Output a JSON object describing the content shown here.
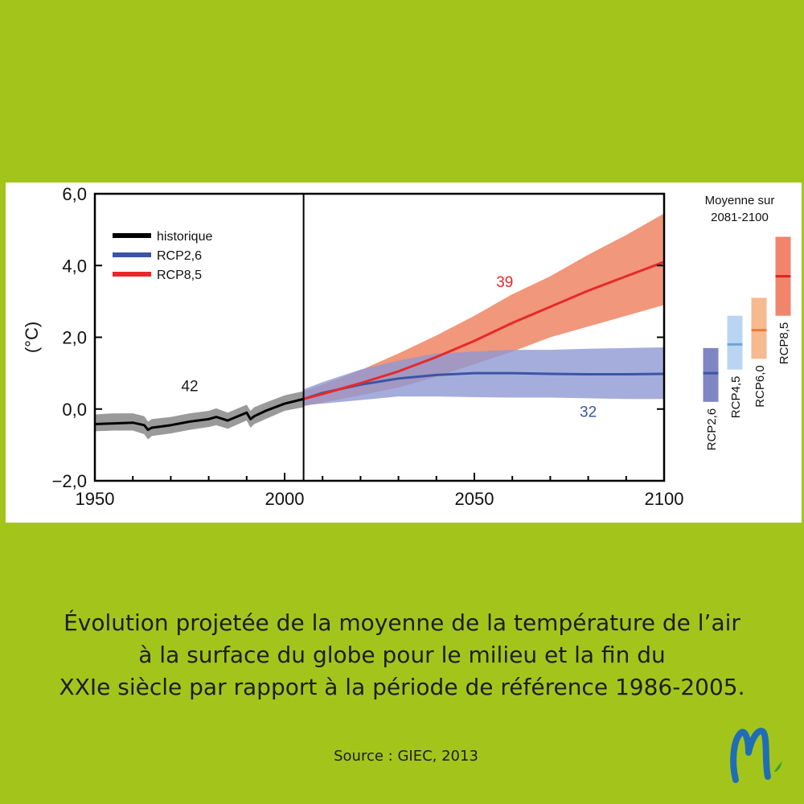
{
  "chart_data": {
    "type": "line",
    "ylabel": "(°C)",
    "xlim": [
      1950,
      2100
    ],
    "ylim": [
      -2,
      6
    ],
    "x_ticks": [
      1950,
      2000,
      2050,
      2100
    ],
    "y_ticks": [
      {
        "value": 6,
        "label": "6,0"
      },
      {
        "value": 4,
        "label": "4,0"
      },
      {
        "value": 2,
        "label": "2,0"
      },
      {
        "value": 0,
        "label": "0,0"
      },
      {
        "value": -2,
        "label": "−2,0"
      }
    ],
    "vline_x": 2005,
    "legend": {
      "placement": "top-left"
    },
    "series": [
      {
        "name": "historique",
        "color": "#000000",
        "band_color": "#9a9a9a",
        "label": "42",
        "label_pos": [
          1975,
          0.5
        ],
        "x": [
          1950,
          1955,
          1960,
          1963,
          1964,
          1965,
          1970,
          1975,
          1980,
          1982,
          1985,
          1990,
          1991,
          1992,
          1995,
          2000,
          2005
        ],
        "y": [
          -0.42,
          -0.4,
          -0.38,
          -0.45,
          -0.58,
          -0.52,
          -0.45,
          -0.35,
          -0.28,
          -0.22,
          -0.32,
          -0.1,
          -0.28,
          -0.2,
          -0.05,
          0.15,
          0.28
        ],
        "lower": [
          -0.62,
          -0.6,
          -0.6,
          -0.7,
          -0.85,
          -0.75,
          -0.68,
          -0.58,
          -0.5,
          -0.45,
          -0.55,
          -0.32,
          -0.52,
          -0.42,
          -0.28,
          -0.05,
          0.05
        ],
        "upper": [
          -0.15,
          -0.12,
          -0.12,
          -0.2,
          -0.35,
          -0.28,
          -0.22,
          -0.12,
          -0.05,
          0.02,
          -0.1,
          0.12,
          -0.05,
          0.05,
          0.18,
          0.38,
          0.5
        ]
      },
      {
        "name": "RCP2,6",
        "color": "#3b55a4",
        "band_color": "#8e98d4",
        "label": "32",
        "label_pos": [
          2080,
          -0.22
        ],
        "x": [
          2005,
          2010,
          2020,
          2030,
          2040,
          2050,
          2060,
          2070,
          2080,
          2090,
          2100
        ],
        "y": [
          0.28,
          0.45,
          0.68,
          0.85,
          0.95,
          1.0,
          1.0,
          0.98,
          0.97,
          0.97,
          0.98
        ],
        "lower": [
          0.1,
          0.15,
          0.25,
          0.35,
          0.35,
          0.33,
          0.32,
          0.32,
          0.3,
          0.28,
          0.28
        ],
        "upper": [
          0.55,
          0.75,
          1.1,
          1.35,
          1.55,
          1.6,
          1.65,
          1.65,
          1.68,
          1.7,
          1.72
        ]
      },
      {
        "name": "RCP8,5",
        "color": "#e8282a",
        "band_color": "#f1977b",
        "label": "39",
        "label_pos": [
          2058,
          3.4
        ],
        "x": [
          2005,
          2010,
          2020,
          2030,
          2040,
          2050,
          2060,
          2070,
          2080,
          2090,
          2100
        ],
        "y": [
          0.28,
          0.42,
          0.72,
          1.05,
          1.45,
          1.9,
          2.4,
          2.85,
          3.3,
          3.7,
          4.1
        ],
        "lower": [
          0.08,
          0.18,
          0.38,
          0.6,
          0.9,
          1.25,
          1.6,
          2.0,
          2.3,
          2.6,
          2.9
        ],
        "upper": [
          0.5,
          0.68,
          1.08,
          1.55,
          2.05,
          2.6,
          3.2,
          3.7,
          4.3,
          4.85,
          5.45
        ]
      }
    ],
    "side_panel": {
      "title_lines": [
        "Moyenne sur",
        "2081-2100"
      ],
      "bars": [
        {
          "name": "RCP2,6",
          "low": 0.2,
          "high": 1.7,
          "mean": 1.0,
          "fill": "#7f86c4",
          "line": "#3b55a4"
        },
        {
          "name": "RCP4,5",
          "low": 1.1,
          "high": 2.6,
          "mean": 1.8,
          "fill": "#b9d5f1",
          "line": "#6fa4dc"
        },
        {
          "name": "RCP6,0",
          "low": 1.4,
          "high": 3.1,
          "mean": 2.2,
          "fill": "#f7b98f",
          "line": "#ec7a34"
        },
        {
          "name": "RCP8,5",
          "low": 2.6,
          "high": 4.8,
          "mean": 3.7,
          "fill": "#f1856b",
          "line": "#d8241f"
        }
      ]
    }
  },
  "caption": {
    "lines": [
      "Évolution projetée de la moyenne de la température de l’air",
      "à la surface du globe pour le milieu et la fin du",
      "XXIe siècle par rapport à la période de référence 1986-2005."
    ],
    "source": "Source : GIEC, 2013"
  },
  "logo": {
    "icon": "m-letter-logo-icon",
    "color": "#1f6eb5",
    "accent": "#3aa02a"
  }
}
